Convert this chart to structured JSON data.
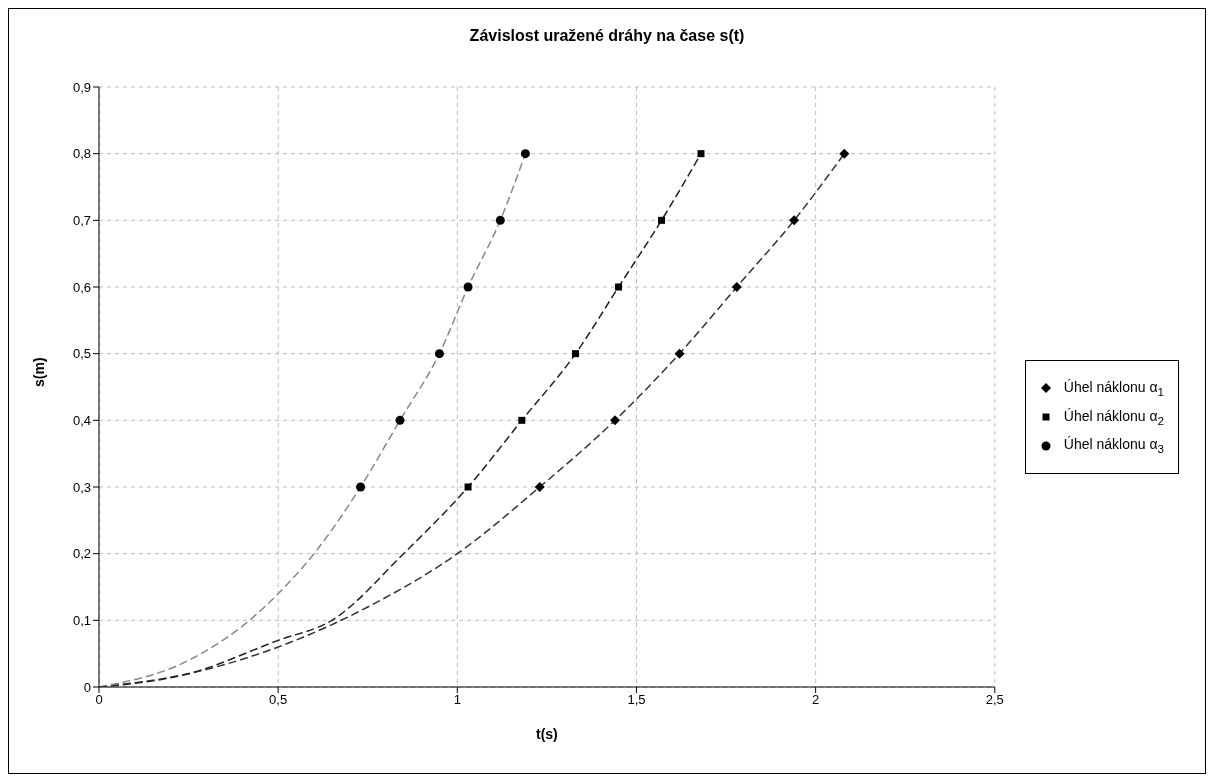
{
  "chart_data": {
    "type": "scatter",
    "title": "Závislost uražené dráhy na čase s(t)",
    "xlabel": "t(s)",
    "ylabel": "s(m)",
    "xlim": [
      0,
      2.5
    ],
    "xticks": [
      0,
      {
        "value": 0.5,
        "label": "0,5"
      },
      1,
      {
        "value": 1.5,
        "label": "1,5"
      },
      2,
      {
        "value": 2.5,
        "label": "2,5"
      }
    ],
    "ylim": [
      0,
      0.9
    ],
    "yticks": [
      0,
      {
        "value": 0.1,
        "label": "0,1"
      },
      {
        "value": 0.2,
        "label": "0,2"
      },
      {
        "value": 0.3,
        "label": "0,3"
      },
      {
        "value": 0.4,
        "label": "0,4"
      },
      {
        "value": 0.5,
        "label": "0,5"
      },
      {
        "value": 0.6,
        "label": "0,6"
      },
      {
        "value": 0.7,
        "label": "0,7"
      },
      {
        "value": 0.8,
        "label": "0,8"
      },
      {
        "value": 0.9,
        "label": "0,9"
      }
    ],
    "grid": true,
    "legend": "right",
    "series": [
      {
        "name": "Úhel náklonu α$_{1}$",
        "marker": "diamond",
        "color": "#000000",
        "x": [
          1.23,
          1.44,
          1.62,
          1.78,
          1.94,
          2.08
        ],
        "values": [
          0.3,
          0.4,
          0.5,
          0.6,
          0.7,
          0.8
        ]
      },
      {
        "name": "Úhel náklonu α$_{2}$",
        "marker": "square",
        "color": "#000000",
        "x": [
          1.03,
          1.18,
          1.33,
          1.45,
          1.57,
          1.68
        ],
        "values": [
          0.3,
          0.4,
          0.5,
          0.6,
          0.7,
          0.8
        ]
      },
      {
        "name": "Úhel náklonu α$_{3}$",
        "marker": "circle",
        "color": "#000000",
        "x": [
          0.73,
          0.84,
          0.95,
          1.03,
          1.12,
          1.19
        ],
        "values": [
          0.3,
          0.4,
          0.5,
          0.6,
          0.7,
          0.8
        ]
      },
      {
        "type": "line",
        "line_style": "dashed",
        "marker": "none",
        "color": "#333333",
        "x": [
          0,
          0.25,
          0.5,
          0.75,
          1.0,
          1.23,
          1.44,
          1.62,
          1.78,
          1.94,
          2.08
        ],
        "values": [
          0,
          0.02,
          0.06,
          0.12,
          0.2,
          0.3,
          0.4,
          0.5,
          0.6,
          0.7,
          0.8
        ]
      },
      {
        "type": "line",
        "line_style": "dashed",
        "marker": "none",
        "color": "#222222",
        "x": [
          0,
          0.25,
          0.5,
          0.65,
          0.85,
          1.03,
          1.18,
          1.33,
          1.45,
          1.57,
          1.68
        ],
        "values": [
          0,
          0.02,
          0.07,
          0.1,
          0.2,
          0.3,
          0.4,
          0.5,
          0.6,
          0.7,
          0.8
        ]
      },
      {
        "type": "line",
        "line_style": "dashed",
        "marker": "none",
        "color": "#888888",
        "x": [
          0,
          0.25,
          0.42,
          0.5,
          0.6,
          0.73,
          0.84,
          0.95,
          1.03,
          1.12,
          1.19
        ],
        "values": [
          0,
          0.04,
          0.1,
          0.14,
          0.2,
          0.3,
          0.4,
          0.5,
          0.6,
          0.7,
          0.8
        ]
      }
    ]
  }
}
